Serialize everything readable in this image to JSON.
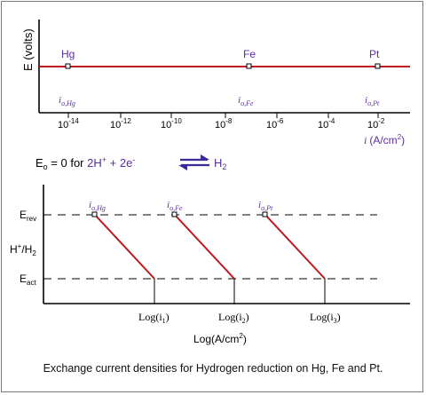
{
  "colors": {
    "axis": "#000000",
    "red_line": "#c0191b",
    "purple": "#5b2ca0",
    "dash": "#000000"
  },
  "top_plot": {
    "ylabel": "E (volts)",
    "xlabel_var": "i",
    "xlabel_unit": "(A/cm",
    "xlabel_sup": "2",
    "xlabel_close": ")",
    "ticks": [
      {
        "base": "10",
        "exp": "-14"
      },
      {
        "base": "10",
        "exp": "-12"
      },
      {
        "base": "10",
        "exp": "-10"
      },
      {
        "base": "10",
        "exp": "-8"
      },
      {
        "base": "10",
        "exp": "-6"
      },
      {
        "base": "10",
        "exp": "-4"
      },
      {
        "base": "10",
        "exp": "-2"
      }
    ],
    "metals": [
      {
        "name": "Hg",
        "io_main": "i",
        "io_sub": "o,Hg",
        "log_i": -14
      },
      {
        "name": "Fe",
        "io_main": "i",
        "io_sub": "o,Fe",
        "log_i": -7.5
      },
      {
        "name": "Pt",
        "io_main": "i",
        "io_sub": "o,Pt",
        "log_i": -2.3
      }
    ]
  },
  "equation": {
    "e_main": "E",
    "e_sub": "o",
    "text1": " = 0 for ",
    "text2": "2H",
    "sup_plus": "+",
    "text3": " + 2e",
    "sup_minus": "-",
    "product_main": "H",
    "product_sub": "2"
  },
  "bottom_plot": {
    "e_rev_main": "E",
    "e_rev_sub": "rev",
    "hh_main": "H",
    "hh_sup": "+",
    "hh_mid": "/H",
    "hh_sub": "2",
    "e_act_main": "E",
    "e_act_sub": "act",
    "lines": [
      {
        "io_main": "i",
        "io_sub": "o,Hg",
        "log_main": "Log(i",
        "log_sub": "1",
        "log_close": ")"
      },
      {
        "io_main": "i",
        "io_sub": "o,Fe",
        "log_main": "Log(i",
        "log_sub": "2",
        "log_close": ")"
      },
      {
        "io_main": "i",
        "io_sub": "o,Pt",
        "log_main": "Log(i",
        "log_sub": "3",
        "log_close": ")"
      }
    ],
    "xlabel_main": "Log(A/cm",
    "xlabel_sup": "2",
    "xlabel_close": ")"
  },
  "caption": "Exchange current densities for Hydrogen reduction on Hg, Fe and Pt."
}
